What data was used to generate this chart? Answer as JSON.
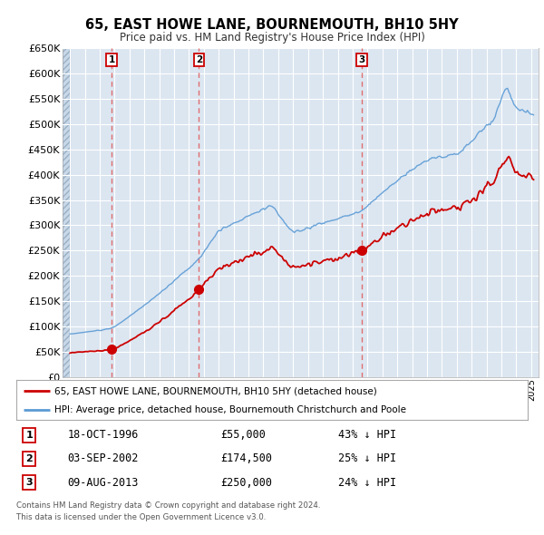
{
  "title": "65, EAST HOWE LANE, BOURNEMOUTH, BH10 5HY",
  "subtitle": "Price paid vs. HM Land Registry's House Price Index (HPI)",
  "transactions": [
    {
      "num": 1,
      "date": "18-OCT-1996",
      "year": 1996.79,
      "price": 55000,
      "pct": "43% ↓ HPI"
    },
    {
      "num": 2,
      "date": "03-SEP-2002",
      "year": 2002.67,
      "price": 174500,
      "pct": "25% ↓ HPI"
    },
    {
      "num": 3,
      "date": "09-AUG-2013",
      "year": 2013.6,
      "price": 250000,
      "pct": "24% ↓ HPI"
    }
  ],
  "legend_property": "65, EAST HOWE LANE, BOURNEMOUTH, BH10 5HY (detached house)",
  "legend_hpi": "HPI: Average price, detached house, Bournemouth Christchurch and Poole",
  "footnote1": "Contains HM Land Registry data © Crown copyright and database right 2024.",
  "footnote2": "This data is licensed under the Open Government Licence v3.0.",
  "property_color": "#cc0000",
  "hpi_color": "#5b9bd5",
  "dashed_color": "#e06060",
  "background_plot": "#dce6f1",
  "background_hatch_color": "#c8d8e8",
  "grid_color": "#ffffff",
  "ylim_max": 650000,
  "ylim_min": 0,
  "xmin": 1993.5,
  "xmax": 2025.5
}
